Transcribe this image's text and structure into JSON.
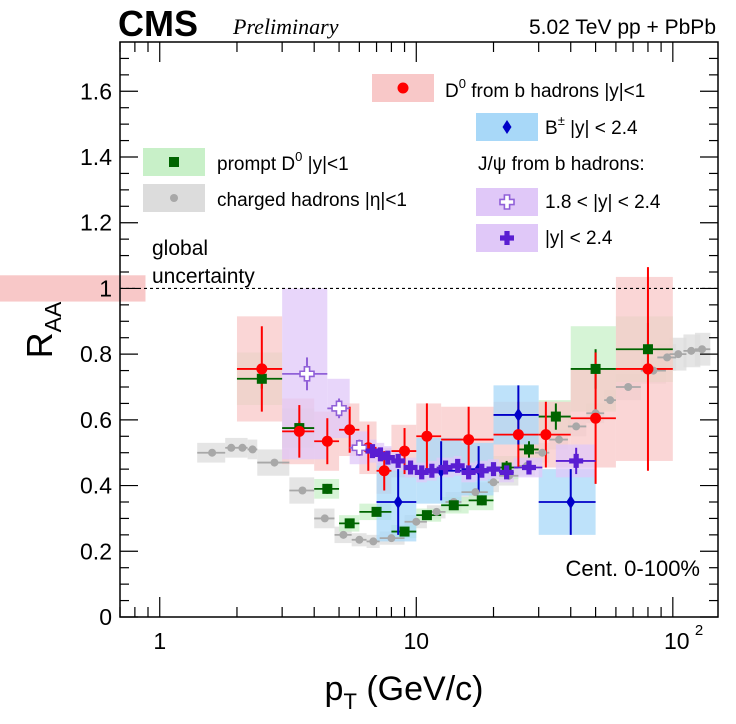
{
  "chart_data": {
    "type": "scatter",
    "x_scale": "log",
    "xlim": [
      0.7,
      150
    ],
    "ylim": [
      0,
      1.75
    ],
    "xlabel": "p_T (GeV/c)",
    "ylabel": "R_AA",
    "x_ticks": [
      "1",
      "10",
      "10²"
    ],
    "y_ticks": [
      "0",
      "0.2",
      "0.4",
      "0.6",
      "0.8",
      "1",
      "1.2",
      "1.4",
      "1.6"
    ],
    "experiment": "CMS",
    "status": "Preliminary",
    "energy_label": "5.02 TeV pp + PbPb",
    "centrality_label": "Cent. 0-100%",
    "global_uncertainty_label": [
      "global",
      "uncertainty"
    ],
    "global_uncertainty": {
      "center": 1.0,
      "half_width": 0.04,
      "xrange": [
        0.7,
        0.88
      ]
    },
    "reference_line_y": 1.0,
    "jpsi_header": "J/ψ from b hadrons:",
    "series": [
      {
        "name": "charged hadrons |η|<1",
        "marker": "circle-small",
        "color": "#a8a8a8",
        "box_color": "#dcdcdc",
        "points": [
          {
            "x": 1.6,
            "xlo": 1.4,
            "xhi": 1.8,
            "y": 0.5,
            "syst": 0.03
          },
          {
            "x": 1.9,
            "xlo": 1.8,
            "xhi": 2.0,
            "y": 0.515,
            "syst": 0.03
          },
          {
            "x": 2.1,
            "xlo": 2.0,
            "xhi": 2.2,
            "y": 0.515,
            "syst": 0.03
          },
          {
            "x": 2.3,
            "xlo": 2.2,
            "xhi": 2.4,
            "y": 0.51,
            "syst": 0.03
          },
          {
            "x": 2.8,
            "xlo": 2.4,
            "xhi": 3.2,
            "y": 0.47,
            "syst": 0.04
          },
          {
            "x": 3.6,
            "xlo": 3.2,
            "xhi": 4.0,
            "y": 0.385,
            "syst": 0.04
          },
          {
            "x": 4.4,
            "xlo": 4.0,
            "xhi": 4.8,
            "y": 0.3,
            "syst": 0.03
          },
          {
            "x": 5.2,
            "xlo": 4.8,
            "xhi": 5.6,
            "y": 0.25,
            "syst": 0.025
          },
          {
            "x": 6.0,
            "xlo": 5.6,
            "xhi": 6.4,
            "y": 0.235,
            "syst": 0.02
          },
          {
            "x": 6.8,
            "xlo": 6.4,
            "xhi": 7.2,
            "y": 0.23,
            "syst": 0.02
          },
          {
            "x": 8.0,
            "xlo": 7.2,
            "xhi": 9.0,
            "y": 0.24,
            "syst": 0.02
          },
          {
            "x": 10.0,
            "xlo": 9.0,
            "xhi": 11.0,
            "y": 0.29,
            "syst": 0.02
          },
          {
            "x": 12.0,
            "xlo": 11.0,
            "xhi": 13.0,
            "y": 0.32,
            "syst": 0.02
          },
          {
            "x": 14.0,
            "xlo": 13.0,
            "xhi": 15.0,
            "y": 0.35,
            "syst": 0.03
          },
          {
            "x": 17.0,
            "xlo": 15.0,
            "xhi": 19.0,
            "y": 0.38,
            "syst": 0.03
          },
          {
            "x": 20.0,
            "xlo": 19.0,
            "xhi": 21.0,
            "y": 0.41,
            "syst": 0.03
          },
          {
            "x": 23.0,
            "xlo": 21.0,
            "xhi": 25.0,
            "y": 0.43,
            "syst": 0.03
          },
          {
            "x": 27.0,
            "xlo": 25.0,
            "xhi": 29.0,
            "y": 0.46,
            "syst": 0.03
          },
          {
            "x": 31.0,
            "xlo": 29.0,
            "xhi": 33.0,
            "y": 0.5,
            "syst": 0.03
          },
          {
            "x": 36.0,
            "xlo": 33.0,
            "xhi": 39.0,
            "y": 0.54,
            "syst": 0.03
          },
          {
            "x": 42.0,
            "xlo": 39.0,
            "xhi": 46.0,
            "y": 0.58,
            "syst": 0.03
          },
          {
            "x": 50.0,
            "xlo": 46.0,
            "xhi": 54.0,
            "y": 0.62,
            "syst": 0.03
          },
          {
            "x": 57.0,
            "xlo": 54.0,
            "xhi": 60.0,
            "y": 0.66,
            "syst": 0.03
          },
          {
            "x": 67.0,
            "xlo": 60.0,
            "xhi": 75.0,
            "y": 0.7,
            "syst": 0.04
          },
          {
            "x": 84.0,
            "xlo": 75.0,
            "xhi": 94.0,
            "y": 0.75,
            "syst": 0.04
          },
          {
            "x": 95.0,
            "xlo": 87.0,
            "xhi": 103.0,
            "y": 0.79,
            "syst": 0.04
          },
          {
            "x": 105.0,
            "xlo": 97.0,
            "xhi": 113.0,
            "y": 0.8,
            "syst": 0.05
          },
          {
            "x": 118.0,
            "xlo": 110.0,
            "xhi": 128.0,
            "y": 0.81,
            "syst": 0.05
          },
          {
            "x": 130.0,
            "xlo": 122.0,
            "xhi": 140.0,
            "y": 0.815,
            "syst": 0.05
          }
        ]
      },
      {
        "name": "prompt D⁰ |y|<1",
        "marker": "square",
        "color": "#006400",
        "box_color": "#c8f0c8",
        "points": [
          {
            "x": 2.5,
            "xlo": 2.0,
            "xhi": 3.0,
            "y": 0.725,
            "stat": 0.03,
            "syst": 0.08
          },
          {
            "x": 3.5,
            "xlo": 3.0,
            "xhi": 4.0,
            "y": 0.575,
            "stat": 0.02,
            "syst": 0.06
          },
          {
            "x": 4.5,
            "xlo": 4.0,
            "xhi": 5.0,
            "y": 0.39,
            "stat": 0.015,
            "syst": 0.03
          },
          {
            "x": 5.5,
            "xlo": 5.0,
            "xhi": 6.0,
            "y": 0.285,
            "stat": 0.01,
            "syst": 0.025
          },
          {
            "x": 7.0,
            "xlo": 6.0,
            "xhi": 8.0,
            "y": 0.32,
            "stat": 0.01,
            "syst": 0.025
          },
          {
            "x": 9.0,
            "xlo": 8.0,
            "xhi": 10.0,
            "y": 0.26,
            "stat": 0.01,
            "syst": 0.02
          },
          {
            "x": 11.0,
            "xlo": 10.0,
            "xhi": 12.5,
            "y": 0.31,
            "stat": 0.01,
            "syst": 0.02
          },
          {
            "x": 14.0,
            "xlo": 12.5,
            "xhi": 16.0,
            "y": 0.34,
            "stat": 0.012,
            "syst": 0.025
          },
          {
            "x": 18.0,
            "xlo": 16.0,
            "xhi": 20.0,
            "y": 0.355,
            "stat": 0.015,
            "syst": 0.03
          },
          {
            "x": 22.5,
            "xlo": 20.0,
            "xhi": 25.0,
            "y": 0.455,
            "stat": 0.02,
            "syst": 0.035
          },
          {
            "x": 27.5,
            "xlo": 25.0,
            "xhi": 30.0,
            "y": 0.51,
            "stat": 0.025,
            "syst": 0.04
          },
          {
            "x": 35.0,
            "xlo": 30.0,
            "xhi": 40.0,
            "y": 0.61,
            "stat": 0.04,
            "syst": 0.05
          },
          {
            "x": 50.0,
            "xlo": 40.0,
            "xhi": 60.0,
            "y": 0.755,
            "stat": 0.06,
            "syst": 0.13
          },
          {
            "x": 80.0,
            "xlo": 60.0,
            "xhi": 100.0,
            "y": 0.815,
            "stat": 0.08,
            "syst": 0.1
          }
        ]
      },
      {
        "name": "D⁰ from b hadrons |y|<1",
        "marker": "circle",
        "color": "#ff0000",
        "box_color": "#f8c8c8",
        "points": [
          {
            "x": 2.5,
            "xlo": 2.0,
            "xhi": 3.0,
            "y": 0.755,
            "stat": 0.13,
            "syst": 0.16
          },
          {
            "x": 3.5,
            "xlo": 3.0,
            "xhi": 4.0,
            "y": 0.565,
            "stat": 0.08,
            "syst": 0.1
          },
          {
            "x": 4.5,
            "xlo": 4.0,
            "xhi": 5.0,
            "y": 0.535,
            "stat": 0.07,
            "syst": 0.09
          },
          {
            "x": 5.5,
            "xlo": 5.0,
            "xhi": 6.0,
            "y": 0.57,
            "stat": 0.07,
            "syst": 0.08
          },
          {
            "x": 6.5,
            "xlo": 6.0,
            "xhi": 7.0,
            "y": 0.515,
            "stat": 0.07,
            "syst": 0.08
          },
          {
            "x": 7.5,
            "xlo": 7.0,
            "xhi": 8.0,
            "y": 0.445,
            "stat": 0.06,
            "syst": 0.07
          },
          {
            "x": 9.0,
            "xlo": 8.0,
            "xhi": 10.0,
            "y": 0.505,
            "stat": 0.07,
            "syst": 0.08
          },
          {
            "x": 11.0,
            "xlo": 10.0,
            "xhi": 12.5,
            "y": 0.55,
            "stat": 0.1,
            "syst": 0.1
          },
          {
            "x": 16.0,
            "xlo": 12.5,
            "xhi": 20.0,
            "y": 0.54,
            "stat": 0.1,
            "syst": 0.1
          },
          {
            "x": 25.0,
            "xlo": 20.0,
            "xhi": 30.0,
            "y": 0.555,
            "stat": 0.1,
            "syst": 0.1
          },
          {
            "x": 32.0,
            "xlo": 30.0,
            "xhi": 40.0,
            "y": 0.555,
            "stat": 0.1,
            "syst": 0.1
          },
          {
            "x": 50.0,
            "xlo": 40.0,
            "xhi": 60.0,
            "y": 0.605,
            "stat": 0.2,
            "syst": 0.15
          },
          {
            "x": 80.0,
            "xlo": 60.0,
            "xhi": 100.0,
            "y": 0.755,
            "stat": 0.31,
            "syst": 0.28
          }
        ]
      },
      {
        "name": "B± |y| < 2.4",
        "marker": "diamond",
        "color": "#0000c8",
        "box_color": "#a8d8f8",
        "points": [
          {
            "x": 8.5,
            "xlo": 7.0,
            "xhi": 10.0,
            "y": 0.35,
            "stat": 0.1,
            "syst": 0.12
          },
          {
            "x": 12.5,
            "xlo": 10.0,
            "xhi": 15.0,
            "y": 0.445,
            "stat": 0.09,
            "syst": 0.1
          },
          {
            "x": 17.5,
            "xlo": 15.0,
            "xhi": 20.0,
            "y": 0.45,
            "stat": 0.07,
            "syst": 0.08
          },
          {
            "x": 25.0,
            "xlo": 20.0,
            "xhi": 30.0,
            "y": 0.615,
            "stat": 0.09,
            "syst": 0.09
          },
          {
            "x": 40.0,
            "xlo": 30.0,
            "xhi": 50.0,
            "y": 0.35,
            "stat": 0.1,
            "syst": 0.1
          }
        ]
      },
      {
        "name": "1.8 < |y| < 2.4",
        "marker": "cross-open",
        "color": "#9060d8",
        "box_color": "#e0c8f8",
        "points": [
          {
            "x": 3.75,
            "xlo": 3.0,
            "xhi": 4.5,
            "y": 0.74,
            "stat": 0.05,
            "syst": 0.26
          },
          {
            "x": 5.0,
            "xlo": 4.5,
            "xhi": 5.5,
            "y": 0.635,
            "stat": 0.03,
            "syst": 0.09
          },
          {
            "x": 6.0,
            "xlo": 5.5,
            "xhi": 6.5,
            "y": 0.515,
            "stat": 0.025,
            "syst": 0.05
          }
        ]
      },
      {
        "name": "|y| < 2.4",
        "marker": "cross-filled",
        "color": "#5a1ed2",
        "box_color": "#e0c8f8",
        "points": [
          {
            "x": 6.75,
            "xlo": 6.5,
            "xhi": 7.0,
            "y": 0.505,
            "stat": 0.02,
            "syst": 0.035
          },
          {
            "x": 7.25,
            "xlo": 7.0,
            "xhi": 7.5,
            "y": 0.495,
            "stat": 0.02,
            "syst": 0.035
          },
          {
            "x": 7.75,
            "xlo": 7.5,
            "xhi": 8.0,
            "y": 0.485,
            "stat": 0.02,
            "syst": 0.035
          },
          {
            "x": 8.5,
            "xlo": 8.0,
            "xhi": 9.0,
            "y": 0.475,
            "stat": 0.015,
            "syst": 0.03
          },
          {
            "x": 9.5,
            "xlo": 9.0,
            "xhi": 10.0,
            "y": 0.455,
            "stat": 0.015,
            "syst": 0.03
          },
          {
            "x": 10.5,
            "xlo": 10.0,
            "xhi": 11.0,
            "y": 0.44,
            "stat": 0.015,
            "syst": 0.03
          },
          {
            "x": 11.5,
            "xlo": 11.0,
            "xhi": 12.0,
            "y": 0.445,
            "stat": 0.015,
            "syst": 0.03
          },
          {
            "x": 13.0,
            "xlo": 12.0,
            "xhi": 14.0,
            "y": 0.455,
            "stat": 0.015,
            "syst": 0.03
          },
          {
            "x": 14.5,
            "xlo": 14.0,
            "xhi": 15.0,
            "y": 0.46,
            "stat": 0.015,
            "syst": 0.03
          },
          {
            "x": 16.0,
            "xlo": 15.0,
            "xhi": 17.0,
            "y": 0.44,
            "stat": 0.015,
            "syst": 0.03
          },
          {
            "x": 18.0,
            "xlo": 17.0,
            "xhi": 19.0,
            "y": 0.445,
            "stat": 0.015,
            "syst": 0.03
          },
          {
            "x": 20.0,
            "xlo": 19.0,
            "xhi": 21.0,
            "y": 0.45,
            "stat": 0.015,
            "syst": 0.03
          },
          {
            "x": 22.5,
            "xlo": 21.0,
            "xhi": 24.0,
            "y": 0.44,
            "stat": 0.015,
            "syst": 0.03
          },
          {
            "x": 27.5,
            "xlo": 24.0,
            "xhi": 31.0,
            "y": 0.455,
            "stat": 0.02,
            "syst": 0.03
          },
          {
            "x": 42.0,
            "xlo": 35.0,
            "xhi": 50.0,
            "y": 0.475,
            "stat": 0.04,
            "syst": 0.05
          }
        ]
      }
    ],
    "legend": [
      {
        "series": 2,
        "label_main": "D",
        "label_sup": "0",
        "label_rest": " from b hadrons |y|<1"
      },
      {
        "series": 3,
        "label_main": "B",
        "label_sup": "±",
        "label_rest": " |y| < 2.4"
      },
      {
        "series": 1,
        "label_main": "prompt D",
        "label_sup": "0",
        "label_rest": " |y|<1"
      },
      {
        "series": 0,
        "label_main": "charged hadrons |η|<1",
        "label_sup": "",
        "label_rest": ""
      },
      {
        "series": 4,
        "label_main": "1.8 < |y| < 2.4",
        "label_sup": "",
        "label_rest": ""
      },
      {
        "series": 5,
        "label_main": "|y| < 2.4",
        "label_sup": "",
        "label_rest": ""
      }
    ]
  }
}
